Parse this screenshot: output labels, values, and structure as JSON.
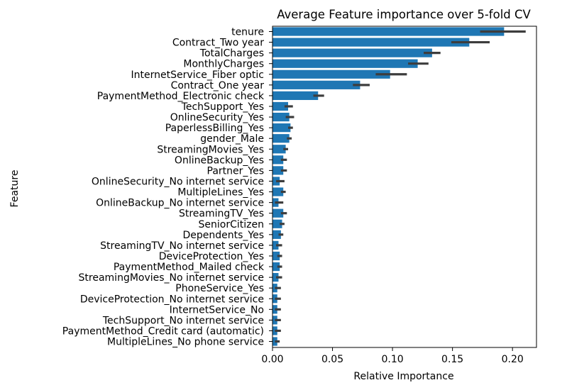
{
  "chart_data": {
    "type": "bar",
    "orientation": "horizontal",
    "title": "Average Feature importance over 5-fold CV",
    "xlabel": "Relative Importance",
    "ylabel": "Feature",
    "xlim": [
      0,
      0.22
    ],
    "xticks": [
      "0.00",
      "0.05",
      "0.10",
      "0.15",
      "0.20"
    ],
    "grid": false,
    "bar_color": "#1f77b4",
    "errorbar_color": "#3d3d3d",
    "categories": [
      "tenure",
      "Contract_Two year",
      "TotalCharges",
      "MonthlyCharges",
      "InternetService_Fiber optic",
      "Contract_One year",
      "PaymentMethod_Electronic check",
      "TechSupport_Yes",
      "OnlineSecurity_Yes",
      "PaperlessBilling_Yes",
      "gender_Male",
      "StreamingMovies_Yes",
      "OnlineBackup_Yes",
      "Partner_Yes",
      "OnlineSecurity_No internet service",
      "MultipleLines_Yes",
      "OnlineBackup_No internet service",
      "StreamingTV_Yes",
      "SeniorCitizen",
      "Dependents_Yes",
      "StreamingTV_No internet service",
      "DeviceProtection_Yes",
      "PaymentMethod_Mailed check",
      "StreamingMovies_No internet service",
      "PhoneService_Yes",
      "DeviceProtection_No internet service",
      "InternetService_No",
      "TechSupport_No internet service",
      "PaymentMethod_Credit card (automatic)",
      "MultipleLines_No phone service"
    ],
    "values": [
      0.193,
      0.164,
      0.133,
      0.121,
      0.098,
      0.073,
      0.038,
      0.013,
      0.014,
      0.015,
      0.014,
      0.011,
      0.009,
      0.009,
      0.006,
      0.009,
      0.005,
      0.009,
      0.008,
      0.007,
      0.005,
      0.006,
      0.006,
      0.005,
      0.004,
      0.004,
      0.004,
      0.004,
      0.004,
      0.004
    ],
    "error_low": [
      0.173,
      0.149,
      0.126,
      0.113,
      0.086,
      0.067,
      0.034,
      0.01,
      0.011,
      0.013,
      0.012,
      0.009,
      0.007,
      0.007,
      0.003,
      0.007,
      0.002,
      0.007,
      0.006,
      0.005,
      0.003,
      0.004,
      0.004,
      0.003,
      0.002,
      0.002,
      0.002,
      0.002,
      0.002,
      0.002
    ],
    "error_high": [
      0.211,
      0.181,
      0.14,
      0.13,
      0.112,
      0.081,
      0.043,
      0.017,
      0.018,
      0.017,
      0.016,
      0.013,
      0.012,
      0.012,
      0.01,
      0.011,
      0.009,
      0.012,
      0.01,
      0.009,
      0.008,
      0.008,
      0.008,
      0.008,
      0.007,
      0.007,
      0.007,
      0.007,
      0.007,
      0.006
    ]
  }
}
